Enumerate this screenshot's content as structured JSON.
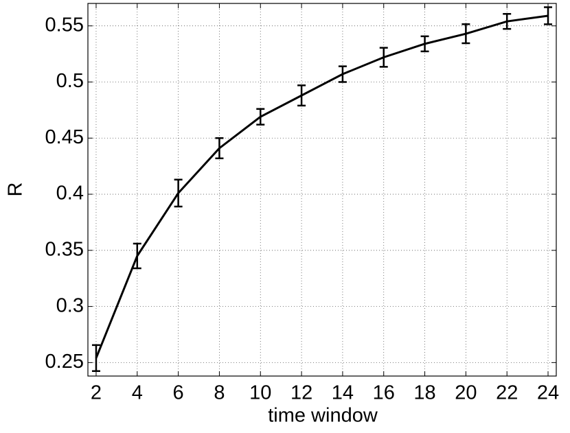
{
  "chart_data": {
    "type": "errorbar_line",
    "xlabel": "time window",
    "ylabel": "R",
    "x": [
      2,
      4,
      6,
      8,
      10,
      12,
      14,
      16,
      18,
      20,
      22,
      24
    ],
    "series": [
      {
        "color": "#000000",
        "values": [
          0.254,
          0.345,
          0.401,
          0.441,
          0.469,
          0.488,
          0.507,
          0.522,
          0.534,
          0.543,
          0.554,
          0.559
        ],
        "errors": [
          0.0116,
          0.011,
          0.012,
          0.009,
          0.007,
          0.009,
          0.007,
          0.0085,
          0.0067,
          0.0085,
          0.0067,
          0.0076
        ]
      }
    ],
    "xlim": [
      1.6,
      24.4
    ],
    "ylim": [
      0.238,
      0.57
    ],
    "xticks": [
      2,
      4,
      6,
      8,
      10,
      12,
      14,
      16,
      18,
      20,
      22,
      24
    ],
    "yticks": [
      0.25,
      0.3,
      0.35,
      0.4,
      0.45,
      0.5,
      0.55
    ],
    "grid": true
  }
}
